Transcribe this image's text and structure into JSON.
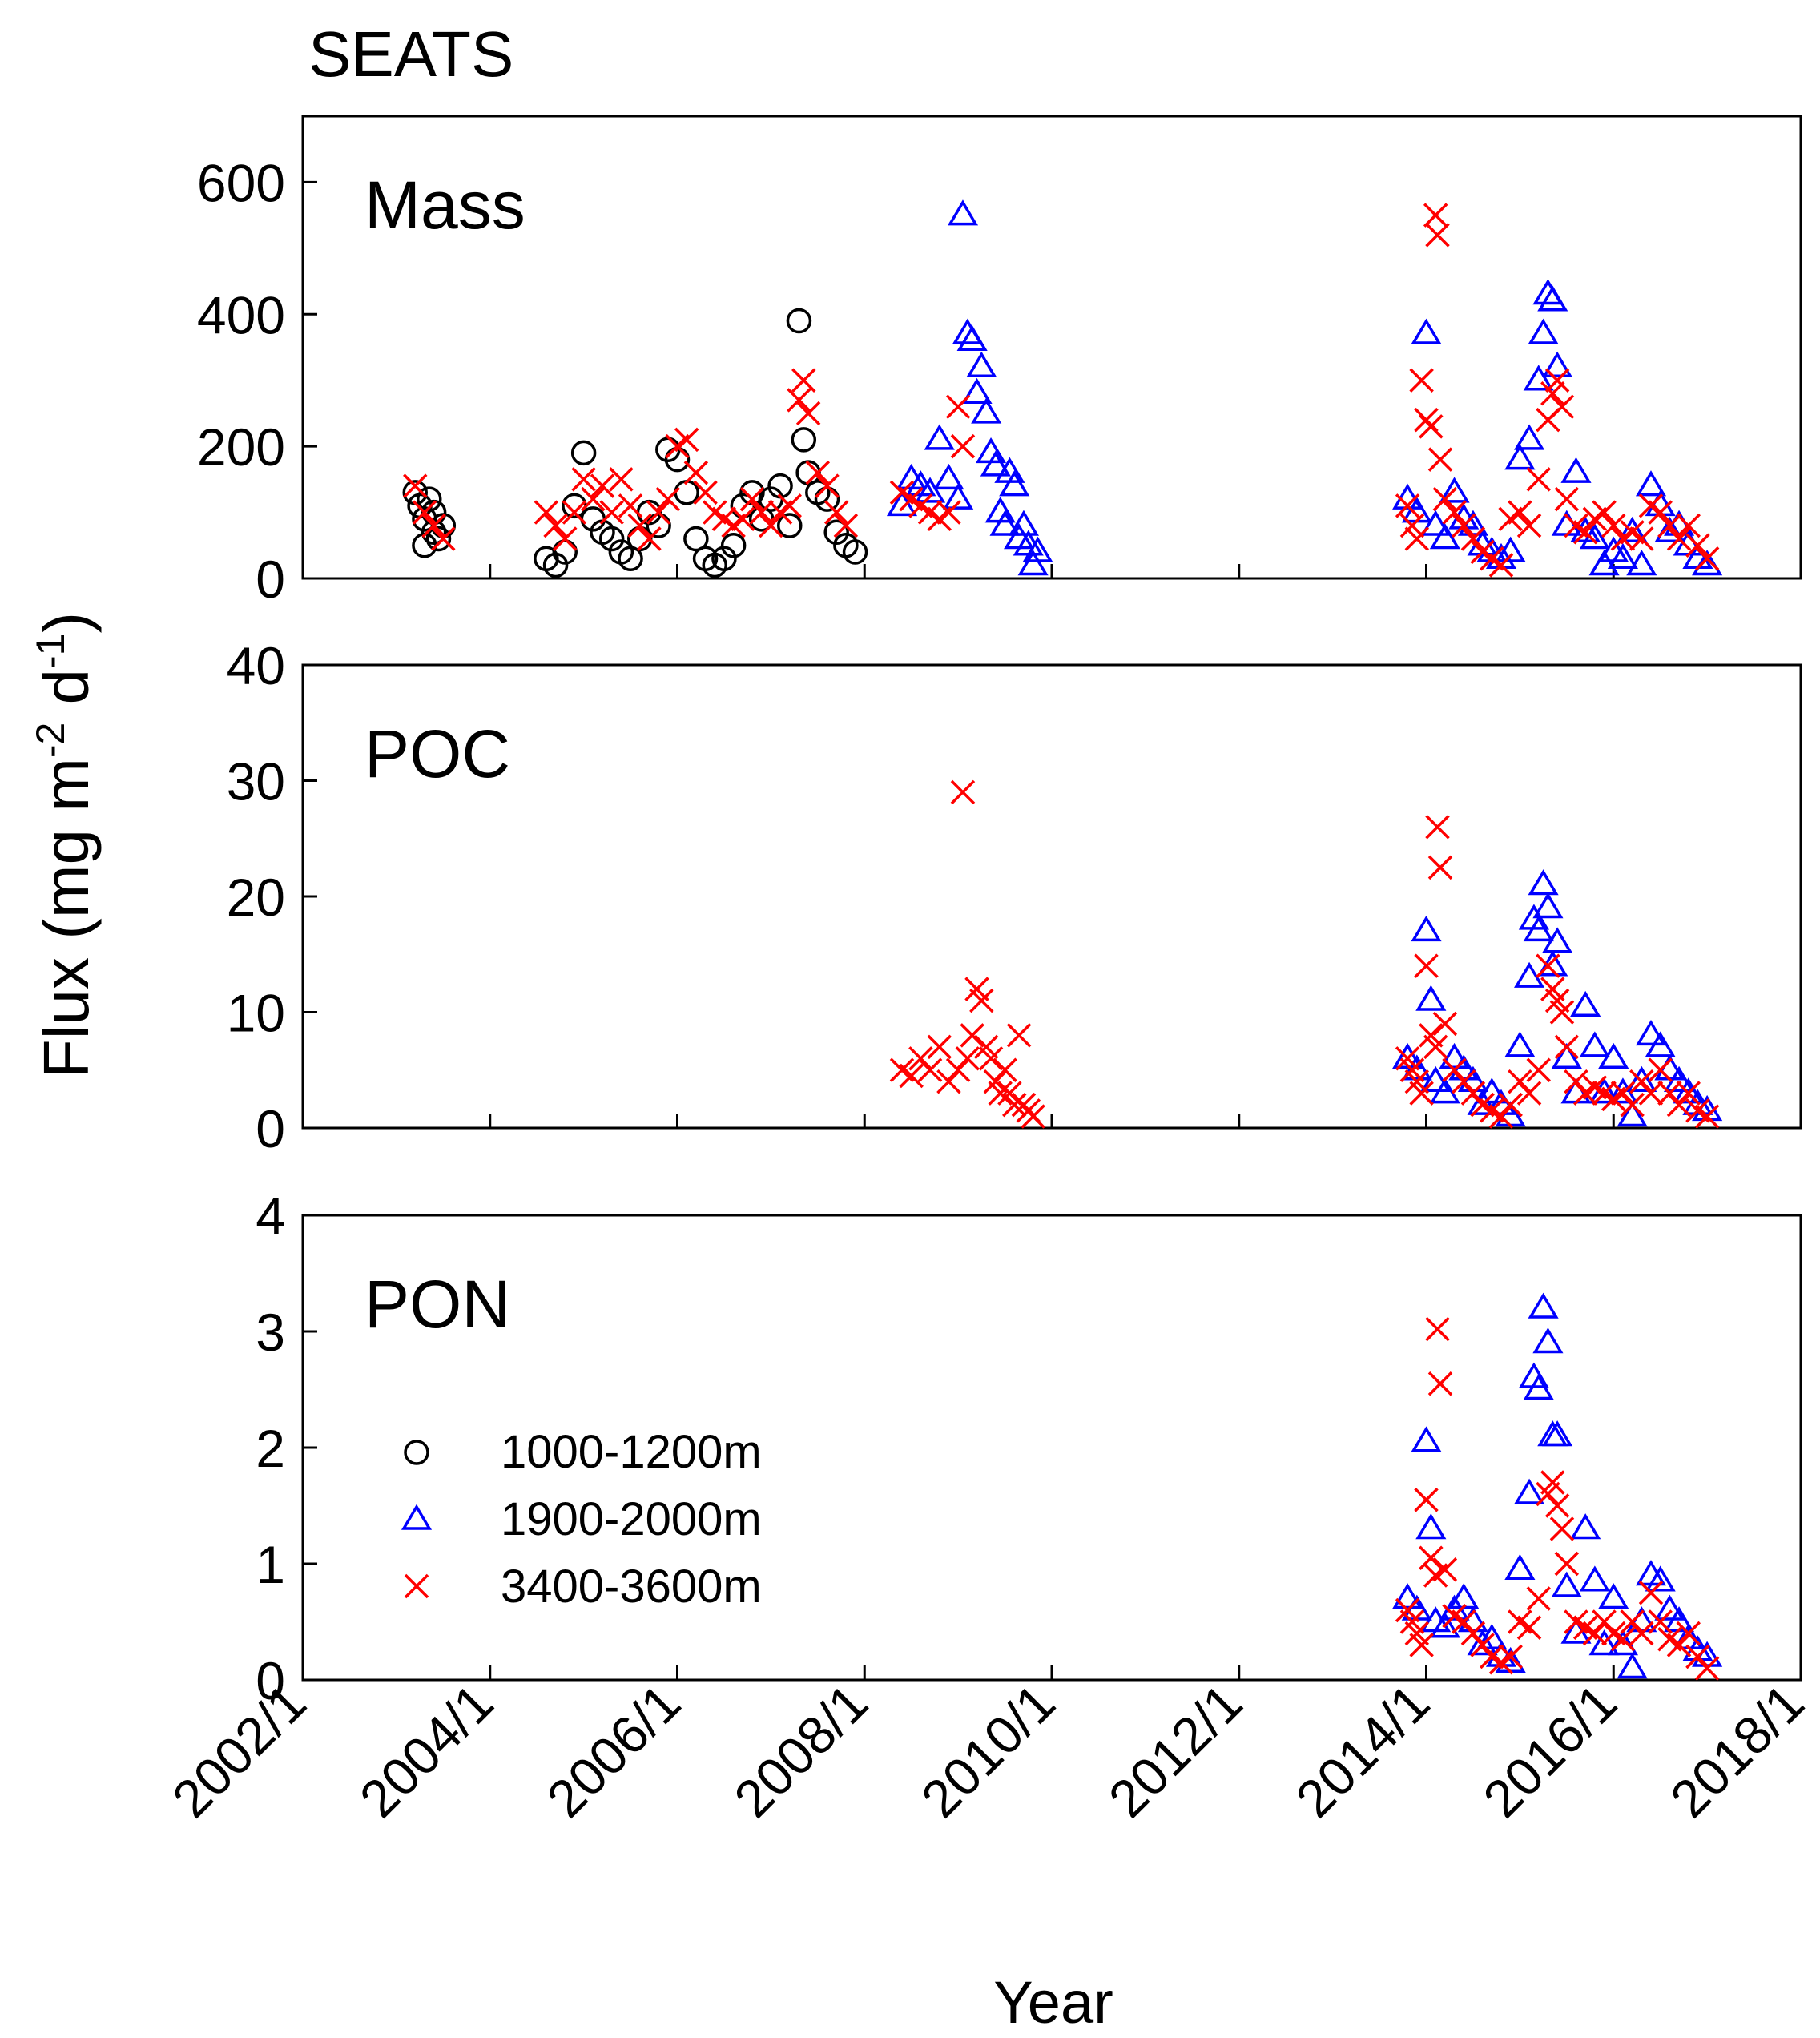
{
  "figure_title": "SEATS",
  "chart_data": {
    "type": "scatter",
    "xlabel": "Year",
    "ylabel": "Flux (mg m",
    "ylabel_sup1": "-2",
    "ylabel_mid": " d",
    "ylabel_sup2": "-1",
    "ylabel_end": ")",
    "x_ticks": [
      "2002/1",
      "2004/1",
      "2006/1",
      "2008/1",
      "2010/1",
      "2012/1",
      "2014/1",
      "2016/1",
      "2018/1"
    ],
    "xlim": [
      2002,
      2018
    ],
    "legend": [
      {
        "label": "1000-1200m",
        "marker": "circle",
        "color": "#000000"
      },
      {
        "label": "1900-2000m",
        "marker": "triangle",
        "color": "#0000ff"
      },
      {
        "label": "3400-3600m",
        "marker": "x",
        "color": "#ff0000"
      }
    ],
    "panels": [
      {
        "name": "Mass",
        "ylim": [
          0,
          700
        ],
        "yticks": [
          "0",
          "200",
          "400",
          "600"
        ],
        "ytick_values": [
          0,
          200,
          400,
          600
        ],
        "series": [
          {
            "name": "1000-1200m",
            "x": [
              2003.2,
              2003.25,
              2003.3,
              2003.35,
              2003.4,
              2003.45,
              2003.5,
              2003.3,
              2003.4,
              2004.6,
              2004.7,
              2004.8,
              2004.9,
              2005.0,
              2005.1,
              2005.2,
              2005.3,
              2005.4,
              2005.5,
              2005.6,
              2005.7,
              2005.8,
              2005.9,
              2006.0,
              2006.1,
              2006.2,
              2006.3,
              2006.4,
              2006.5,
              2006.6,
              2006.7,
              2006.8,
              2006.9,
              2007.0,
              2007.1,
              2007.2,
              2007.3,
              2007.35,
              2007.4,
              2007.5,
              2007.6,
              2007.7,
              2007.8,
              2007.9
            ],
            "y": [
              130,
              110,
              90,
              120,
              100,
              60,
              80,
              50,
              70,
              30,
              20,
              40,
              110,
              190,
              90,
              70,
              60,
              40,
              30,
              60,
              100,
              80,
              195,
              180,
              130,
              60,
              30,
              20,
              30,
              50,
              110,
              130,
              90,
              120,
              140,
              80,
              390,
              210,
              160,
              130,
              120,
              70,
              50,
              40
            ]
          },
          {
            "name": "1900-2000m",
            "x": [
              2008.4,
              2008.5,
              2008.6,
              2008.7,
              2008.8,
              2008.9,
              2009.0,
              2009.05,
              2009.1,
              2009.15,
              2009.2,
              2009.25,
              2009.3,
              2009.35,
              2009.4,
              2009.45,
              2009.5,
              2009.55,
              2009.6,
              2009.65,
              2009.7,
              2009.75,
              2009.8,
              2009.85,
              2013.8,
              2013.9,
              2014.0,
              2014.1,
              2014.2,
              2014.3,
              2014.4,
              2014.5,
              2014.6,
              2014.7,
              2014.8,
              2014.9,
              2015.0,
              2015.1,
              2015.2,
              2015.25,
              2015.3,
              2015.35,
              2015.4,
              2015.5,
              2015.6,
              2015.7,
              2015.8,
              2015.9,
              2016.0,
              2016.1,
              2016.2,
              2016.3,
              2016.4,
              2016.5,
              2016.6,
              2016.7,
              2016.8,
              2016.9,
              2017.0
            ],
            "y": [
              110,
              150,
              140,
              130,
              210,
              150,
              120,
              550,
              370,
              360,
              280,
              320,
              250,
              190,
              170,
              100,
              80,
              160,
              140,
              60,
              80,
              50,
              20,
              40,
              120,
              100,
              370,
              80,
              60,
              130,
              90,
              80,
              50,
              40,
              30,
              40,
              180,
              210,
              300,
              370,
              430,
              420,
              320,
              80,
              160,
              70,
              60,
              20,
              40,
              30,
              70,
              20,
              140,
              110,
              70,
              80,
              50,
              30,
              20
            ]
          },
          {
            "name": "3400-3600m",
            "x": [
              2003.2,
              2003.3,
              2003.4,
              2003.5,
              2004.6,
              2004.7,
              2004.8,
              2004.9,
              2005.0,
              2005.1,
              2005.2,
              2005.3,
              2005.4,
              2005.5,
              2005.6,
              2005.7,
              2005.8,
              2005.9,
              2006.0,
              2006.1,
              2006.2,
              2006.3,
              2006.4,
              2006.5,
              2006.6,
              2006.7,
              2006.8,
              2006.9,
              2007.0,
              2007.1,
              2007.2,
              2007.3,
              2007.35,
              2007.4,
              2007.5,
              2007.6,
              2007.7,
              2007.8,
              2008.4,
              2008.5,
              2008.6,
              2008.7,
              2008.8,
              2008.9,
              2009.0,
              2009.05,
              2013.8,
              2013.85,
              2013.9,
              2013.95,
              2014.0,
              2014.05,
              2014.1,
              2014.12,
              2014.15,
              2014.2,
              2014.3,
              2014.4,
              2014.5,
              2014.6,
              2014.7,
              2014.8,
              2014.9,
              2015.0,
              2015.1,
              2015.2,
              2015.3,
              2015.35,
              2015.4,
              2015.45,
              2015.5,
              2015.6,
              2015.7,
              2015.8,
              2015.9,
              2016.0,
              2016.1,
              2016.2,
              2016.3,
              2016.4,
              2016.5,
              2016.6,
              2016.7,
              2016.8,
              2016.9,
              2017.0
            ],
            "y": [
              140,
              100,
              80,
              60,
              100,
              80,
              60,
              100,
              150,
              120,
              140,
              100,
              150,
              110,
              80,
              60,
              100,
              120,
              200,
              210,
              160,
              130,
              100,
              90,
              80,
              90,
              120,
              100,
              80,
              100,
              110,
              270,
              300,
              250,
              160,
              140,
              100,
              80,
              130,
              120,
              110,
              100,
              90,
              100,
              260,
              200,
              110,
              80,
              60,
              300,
              240,
              230,
              550,
              520,
              180,
              120,
              100,
              80,
              60,
              40,
              30,
              20,
              90,
              100,
              80,
              150,
              240,
              280,
              300,
              260,
              120,
              80,
              70,
              90,
              100,
              80,
              60,
              70,
              60,
              110,
              100,
              80,
              60,
              80,
              50,
              30
            ]
          }
        ]
      },
      {
        "name": "POC",
        "ylim": [
          0,
          40
        ],
        "yticks": [
          "0",
          "10",
          "20",
          "30",
          "40"
        ],
        "ytick_values": [
          0,
          10,
          20,
          30,
          40
        ],
        "series": [
          {
            "name": "1000-1200m",
            "x": [],
            "y": []
          },
          {
            "name": "1900-2000m",
            "x": [
              2013.8,
              2013.9,
              2014.0,
              2014.05,
              2014.1,
              2014.2,
              2014.3,
              2014.4,
              2014.5,
              2014.6,
              2014.7,
              2014.8,
              2014.9,
              2015.0,
              2015.1,
              2015.15,
              2015.2,
              2015.25,
              2015.3,
              2015.35,
              2015.4,
              2015.5,
              2015.6,
              2015.7,
              2015.8,
              2015.9,
              2016.0,
              2016.1,
              2016.2,
              2016.3,
              2016.4,
              2016.5,
              2016.6,
              2016.7,
              2016.8,
              2016.9,
              2017.0
            ],
            "y": [
              6,
              5,
              17,
              11,
              4,
              3,
              6,
              5,
              4,
              2,
              3,
              2,
              1,
              7,
              13,
              18,
              17,
              21,
              19,
              14,
              16,
              6,
              3,
              10.5,
              7,
              3,
              6,
              3,
              1,
              4,
              8,
              7,
              5,
              4,
              3,
              2,
              1.5
            ]
          },
          {
            "name": "3400-3600m",
            "x": [
              2008.4,
              2008.5,
              2008.6,
              2008.7,
              2008.8,
              2008.9,
              2009.0,
              2009.05,
              2009.1,
              2009.15,
              2009.2,
              2009.25,
              2009.3,
              2009.35,
              2009.4,
              2009.45,
              2009.5,
              2009.55,
              2009.6,
              2009.65,
              2009.7,
              2009.75,
              2009.8,
              2013.8,
              2013.85,
              2013.9,
              2013.95,
              2014.0,
              2014.05,
              2014.1,
              2014.12,
              2014.15,
              2014.2,
              2014.3,
              2014.4,
              2014.5,
              2014.6,
              2014.7,
              2014.8,
              2014.9,
              2015.0,
              2015.1,
              2015.2,
              2015.3,
              2015.35,
              2015.4,
              2015.45,
              2015.5,
              2015.6,
              2015.7,
              2015.8,
              2015.9,
              2016.0,
              2016.1,
              2016.2,
              2016.3,
              2016.4,
              2016.5,
              2016.6,
              2016.7,
              2016.8,
              2016.9,
              2017.0
            ],
            "y": [
              5,
              4.5,
              6,
              5,
              7,
              4,
              5,
              29,
              6,
              8,
              12,
              11,
              7,
              6,
              4,
              3,
              5,
              3,
              2,
              8,
              2,
              1.5,
              1,
              6,
              5,
              4,
              3,
              14,
              8,
              7,
              26,
              22.5,
              9,
              5,
              4,
              3,
              2,
              1.5,
              1,
              2,
              4,
              3,
              5,
              14,
              12,
              11,
              10,
              7,
              4,
              3,
              3.5,
              3,
              2.5,
              3,
              2,
              4,
              3,
              5,
              3,
              2,
              3,
              1.5,
              1
            ]
          }
        ]
      },
      {
        "name": "PON",
        "ylim": [
          0,
          4
        ],
        "yticks": [
          "0",
          "1",
          "2",
          "3",
          "4"
        ],
        "ytick_values": [
          0,
          1,
          2,
          3,
          4
        ],
        "series": [
          {
            "name": "1000-1200m",
            "x": [],
            "y": []
          },
          {
            "name": "1900-2000m",
            "x": [
              2013.8,
              2013.9,
              2014.0,
              2014.05,
              2014.1,
              2014.2,
              2014.3,
              2014.4,
              2014.5,
              2014.6,
              2014.7,
              2014.8,
              2014.9,
              2015.0,
              2015.1,
              2015.15,
              2015.2,
              2015.25,
              2015.3,
              2015.35,
              2015.4,
              2015.5,
              2015.6,
              2015.7,
              2015.8,
              2015.9,
              2016.0,
              2016.1,
              2016.2,
              2016.3,
              2016.4,
              2016.5,
              2016.6,
              2016.7,
              2016.8,
              2016.9,
              2017.0
            ],
            "y": [
              0.7,
              0.6,
              2.05,
              1.3,
              0.5,
              0.45,
              0.6,
              0.7,
              0.5,
              0.3,
              0.35,
              0.2,
              0.15,
              0.95,
              1.6,
              2.6,
              2.5,
              3.2,
              2.9,
              2.1,
              2.1,
              0.8,
              0.4,
              1.3,
              0.85,
              0.3,
              0.7,
              0.3,
              0.1,
              0.5,
              0.9,
              0.85,
              0.6,
              0.5,
              0.35,
              0.25,
              0.2
            ]
          },
          {
            "name": "3400-3600m",
            "x": [
              2013.8,
              2013.85,
              2013.9,
              2013.95,
              2014.0,
              2014.05,
              2014.1,
              2014.12,
              2014.15,
              2014.2,
              2014.3,
              2014.4,
              2014.5,
              2014.6,
              2014.7,
              2014.8,
              2014.9,
              2015.0,
              2015.1,
              2015.2,
              2015.3,
              2015.35,
              2015.4,
              2015.45,
              2015.5,
              2015.6,
              2015.7,
              2015.8,
              2015.9,
              2016.0,
              2016.1,
              2016.2,
              2016.3,
              2016.4,
              2016.5,
              2016.6,
              2016.7,
              2016.8,
              2016.9,
              2017.0
            ],
            "y": [
              0.6,
              0.5,
              0.4,
              0.3,
              1.55,
              1.05,
              0.9,
              3.02,
              2.55,
              0.95,
              0.55,
              0.5,
              0.4,
              0.3,
              0.2,
              0.15,
              0.2,
              0.5,
              0.45,
              0.7,
              1.6,
              1.7,
              1.5,
              1.3,
              1.0,
              0.5,
              0.45,
              0.4,
              0.5,
              0.4,
              0.35,
              0.5,
              0.4,
              0.75,
              0.5,
              0.35,
              0.3,
              0.4,
              0.2,
              0.1
            ]
          }
        ]
      }
    ]
  }
}
